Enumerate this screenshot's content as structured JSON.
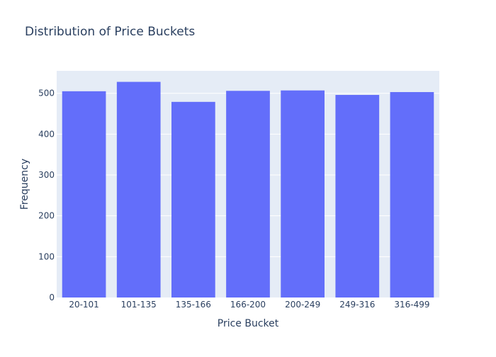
{
  "chart_data": {
    "type": "bar",
    "title": "Distribution of Price Buckets",
    "xlabel": "Price Bucket",
    "ylabel": "Frequency",
    "categories": [
      "20-101",
      "101-135",
      "135-166",
      "166-200",
      "200-249",
      "249-316",
      "316-499"
    ],
    "values": [
      505,
      528,
      479,
      506,
      507,
      496,
      503
    ],
    "ylim": [
      0,
      555
    ],
    "yticks": [
      0,
      100,
      200,
      300,
      400,
      500
    ],
    "grid": true,
    "legend": "none",
    "colors": {
      "bar": "#636efa",
      "plot_bg": "#e5ecf6",
      "grid": "#ffffff",
      "text": "#2a3f5f"
    }
  }
}
